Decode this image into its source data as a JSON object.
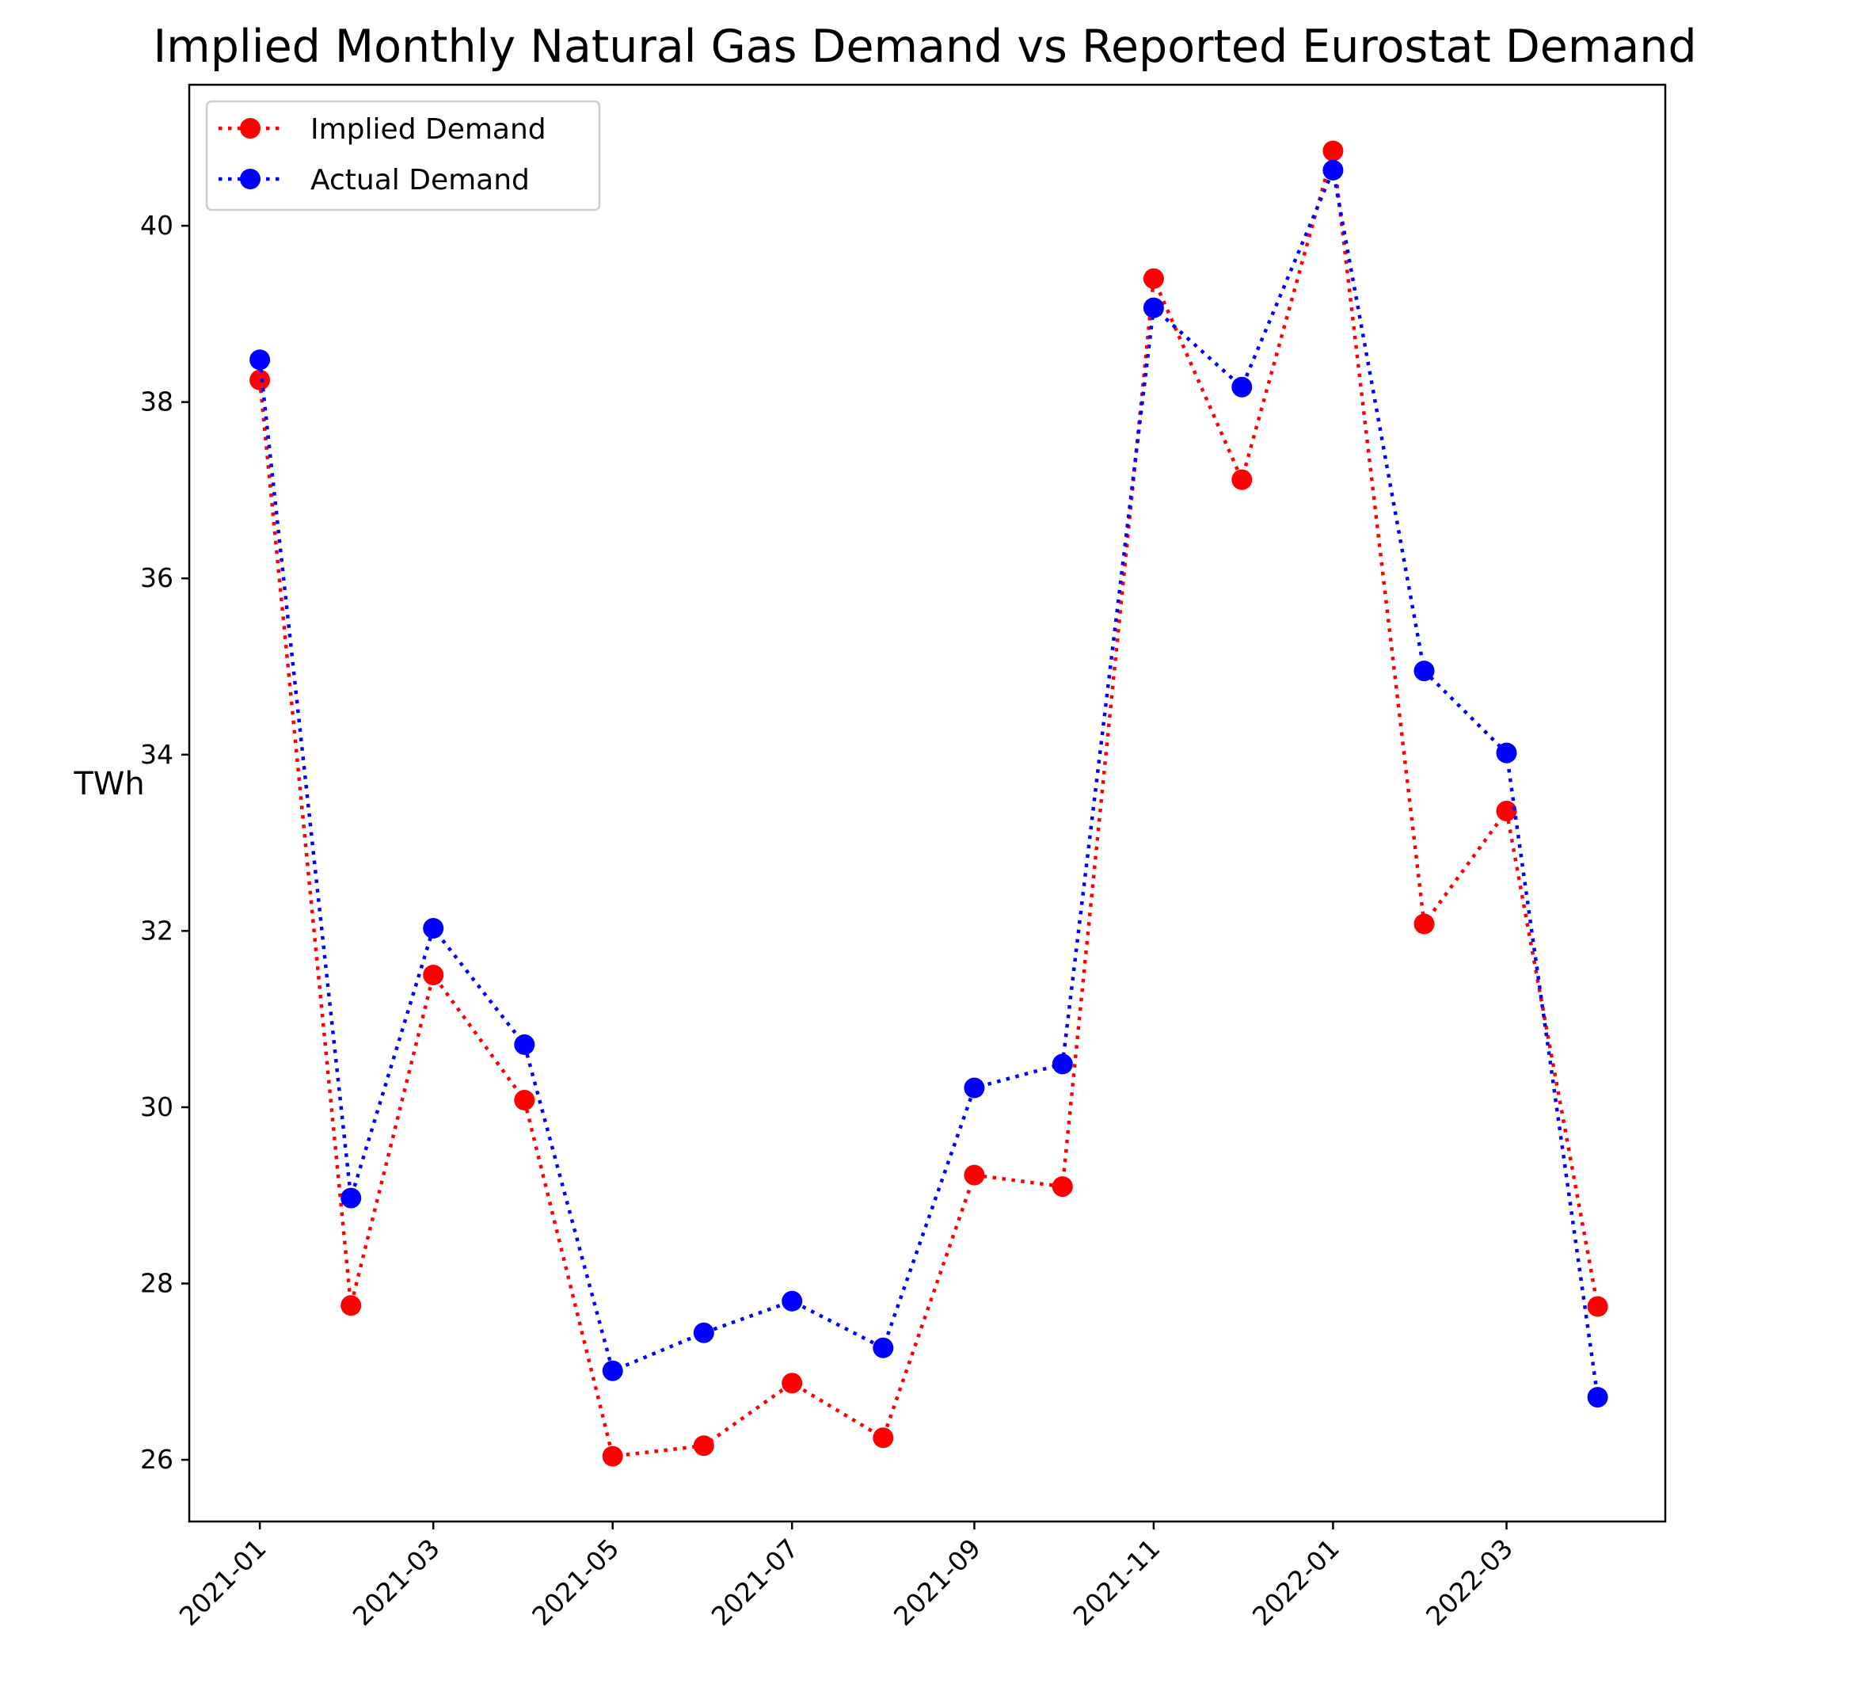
{
  "chart_data": {
    "type": "line",
    "title": "Implied Monthly Natural Gas Demand vs Reported Eurostat Demand",
    "xlabel": "",
    "ylabel": "TWh",
    "x": [
      "2021-01",
      "2021-02",
      "2021-03",
      "2021-04",
      "2021-05",
      "2021-06",
      "2021-07",
      "2021-08",
      "2021-09",
      "2021-10",
      "2021-11",
      "2021-12",
      "2022-01",
      "2022-02",
      "2022-03",
      "2022-04"
    ],
    "x_ticks": [
      "2021-01",
      "2021-03",
      "2021-05",
      "2021-07",
      "2021-09",
      "2021-11",
      "2022-01",
      "2022-03"
    ],
    "y_ticks": [
      26,
      28,
      30,
      32,
      34,
      36,
      38,
      40
    ],
    "ylim": [
      25.3,
      41.6
    ],
    "xlim": [
      "2020-12-08",
      "2022-04-24"
    ],
    "grid": false,
    "legend_position": "upper left",
    "series": [
      {
        "name": "Implied Demand",
        "color": "#ff0000",
        "line_style": "dotted",
        "marker": "circle",
        "values": [
          38.25,
          27.75,
          31.5,
          30.08,
          26.04,
          26.16,
          26.87,
          26.25,
          29.23,
          29.1,
          39.4,
          37.12,
          40.85,
          32.08,
          33.36,
          27.74
        ]
      },
      {
        "name": "Actual Demand",
        "color": "#0000ff",
        "line_style": "dotted",
        "marker": "circle",
        "values": [
          38.48,
          28.97,
          32.03,
          30.71,
          27.01,
          27.44,
          27.8,
          27.27,
          30.22,
          30.49,
          39.07,
          38.17,
          40.63,
          34.95,
          34.02,
          26.71
        ]
      }
    ]
  }
}
